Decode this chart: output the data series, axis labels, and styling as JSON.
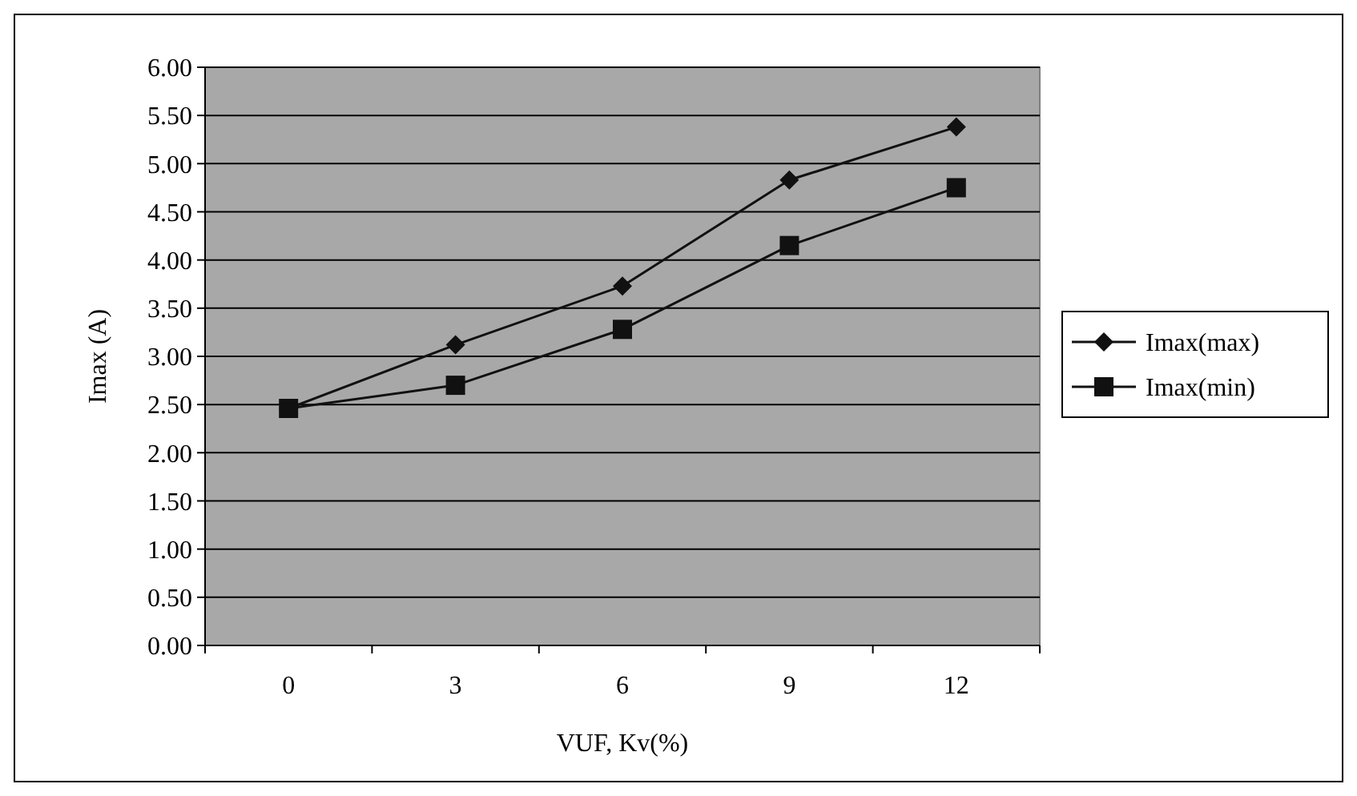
{
  "chart_data": {
    "type": "line",
    "xlabel": "VUF, Kv(%)",
    "ylabel": "Imax (A)",
    "categories": [
      "0",
      "3",
      "6",
      "9",
      "12"
    ],
    "series": [
      {
        "name": "Imax(max)",
        "color": "#111111",
        "marker": "diamond",
        "values": [
          2.46,
          3.12,
          3.73,
          4.83,
          5.38
        ]
      },
      {
        "name": "Imax(min)",
        "color": "#111111",
        "marker": "square",
        "values": [
          2.46,
          2.7,
          3.28,
          4.15,
          4.75
        ]
      }
    ],
    "ylim": [
      0,
      6
    ],
    "yticks": [
      {
        "value": 0,
        "label": "0.00"
      },
      {
        "value": 0.5,
        "label": "0.50"
      },
      {
        "value": 1,
        "label": "1.00"
      },
      {
        "value": 1.5,
        "label": "1.50"
      },
      {
        "value": 2,
        "label": "2.00"
      },
      {
        "value": 2.5,
        "label": "2.50"
      },
      {
        "value": 3,
        "label": "3.00"
      },
      {
        "value": 3.5,
        "label": "3.50"
      },
      {
        "value": 4,
        "label": "4.00"
      },
      {
        "value": 4.5,
        "label": "4.50"
      },
      {
        "value": 5,
        "label": "5.00"
      },
      {
        "value": 5.5,
        "label": "5.50"
      },
      {
        "value": 6,
        "label": "6.00"
      }
    ],
    "grid": "y",
    "legend": "right",
    "line_style": "solid"
  }
}
